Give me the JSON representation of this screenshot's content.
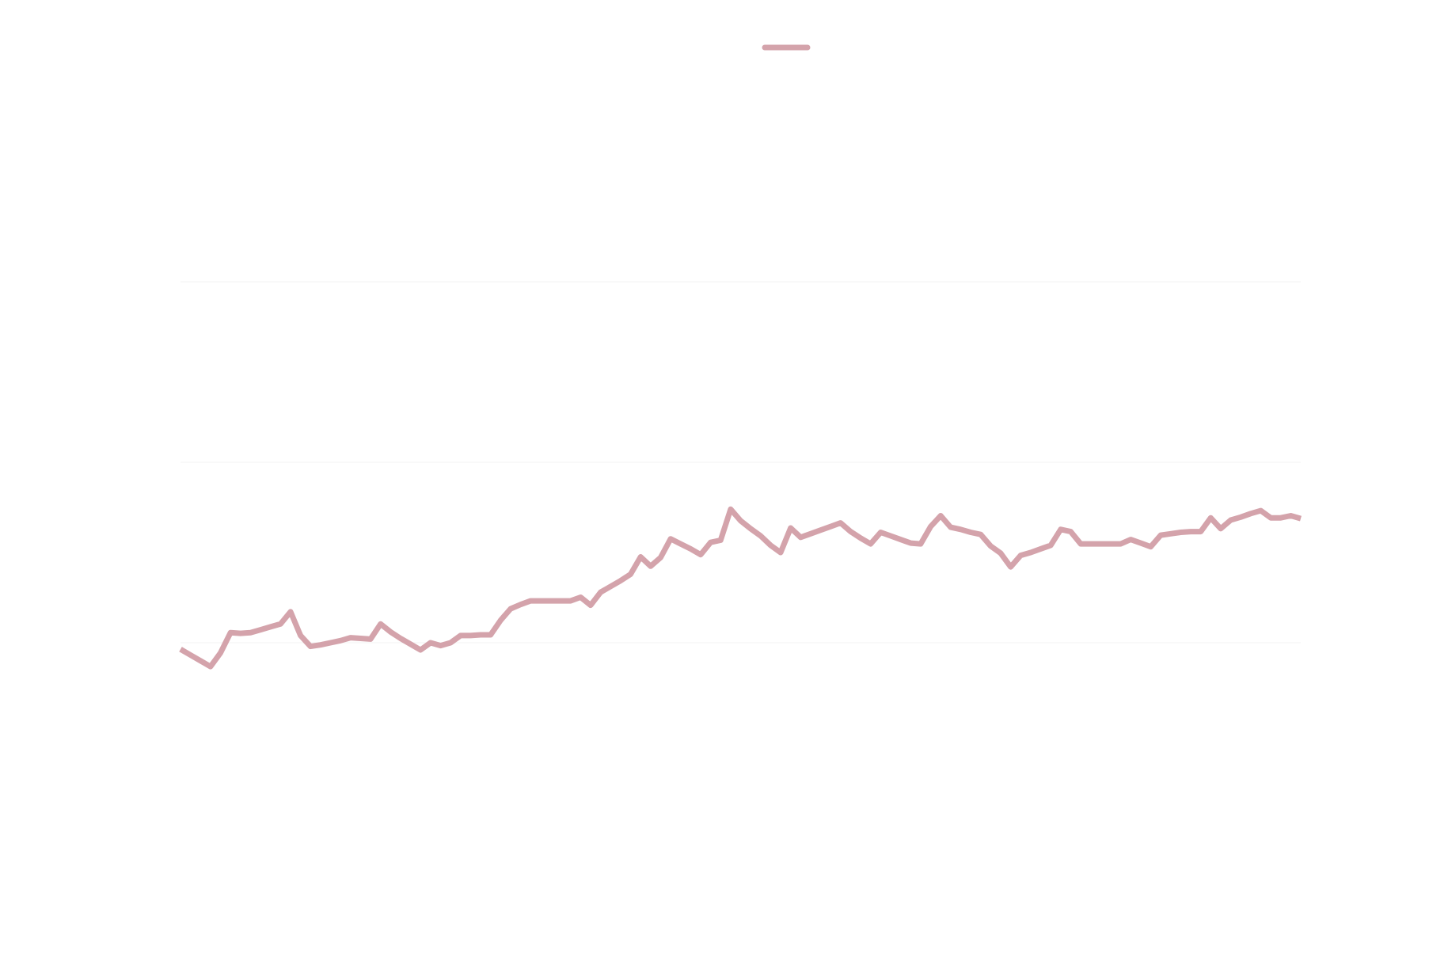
{
  "chart_data": {
    "type": "line",
    "title": "",
    "xlabel": "",
    "ylabel": "",
    "legend": {
      "position": "top-center",
      "entries": [
        {
          "label": "",
          "color": "#d4a3ab"
        }
      ]
    },
    "grid": true,
    "ylim": [
      0,
      100
    ],
    "series": [
      {
        "name": "",
        "color": "#d4a3ab",
        "x": [
          0,
          1,
          2,
          3,
          4,
          5,
          6,
          7,
          8,
          9,
          10,
          11,
          12,
          13,
          14,
          15,
          16,
          17,
          18,
          19,
          20,
          21,
          22,
          23,
          24,
          25,
          26,
          27,
          28,
          29,
          30,
          31,
          32,
          33,
          34,
          35,
          36,
          37,
          38,
          39,
          40,
          41,
          42,
          43,
          44,
          45,
          46,
          47,
          48,
          49,
          50,
          51,
          52,
          53,
          54,
          55,
          56,
          57,
          58,
          59,
          60,
          61,
          62,
          63,
          64,
          65,
          66,
          67,
          68,
          69,
          70,
          71,
          72,
          73,
          74,
          75,
          76,
          77,
          78,
          79,
          80,
          81,
          82,
          83,
          84,
          85,
          86,
          87,
          88,
          89,
          90,
          91,
          92,
          93,
          94,
          95,
          96,
          97,
          98,
          99,
          100,
          101,
          102,
          103,
          104,
          105,
          106,
          107,
          108,
          109,
          110,
          111,
          112
        ],
        "values": [
          24.1,
          23.3,
          22.5,
          21.7,
          23.6,
          26.4,
          26.3,
          26.4,
          26.8,
          27.2,
          27.6,
          29.3,
          26.0,
          24.5,
          24.7,
          25.0,
          25.3,
          25.7,
          25.6,
          25.5,
          27.6,
          26.5,
          25.6,
          24.8,
          24.0,
          25.0,
          24.6,
          25.0,
          26.0,
          26.0,
          26.1,
          26.1,
          28.1,
          29.7,
          30.3,
          30.8,
          30.8,
          30.8,
          30.8,
          30.8,
          31.3,
          30.2,
          32.0,
          32.8,
          33.6,
          34.5,
          36.9,
          35.6,
          36.8,
          39.4,
          38.7,
          38.0,
          37.2,
          38.9,
          39.2,
          43.5,
          41.9,
          40.8,
          39.8,
          38.5,
          37.5,
          40.9,
          39.6,
          40.1,
          40.6,
          41.1,
          41.6,
          40.4,
          39.5,
          38.7,
          40.3,
          39.8,
          39.3,
          38.8,
          38.7,
          41.1,
          42.6,
          41.0,
          40.7,
          40.3,
          40.0,
          38.4,
          37.4,
          35.5,
          37.1,
          37.5,
          38.0,
          38.5,
          40.7,
          40.4,
          38.7,
          38.7,
          38.7,
          38.7,
          38.7,
          39.3,
          38.8,
          38.3,
          39.9,
          40.1,
          40.3,
          40.4,
          40.4,
          42.3,
          40.8,
          42.0,
          42.4,
          42.9,
          43.3,
          42.3,
          42.3,
          42.6,
          42.2
        ]
      }
    ]
  }
}
